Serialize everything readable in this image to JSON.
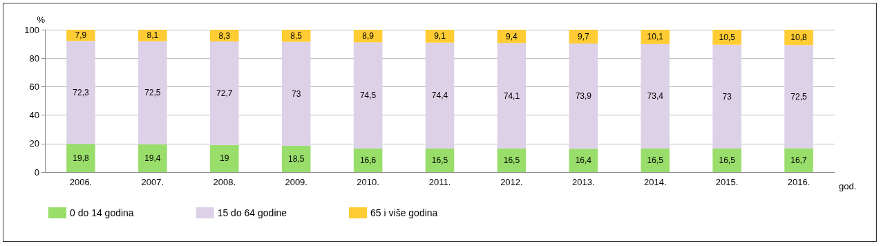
{
  "chart_data": {
    "type": "bar",
    "stacked": true,
    "ylabel": "%",
    "xlabel": "god.",
    "categories": [
      "2006.",
      "2007.",
      "2008.",
      "2009.",
      "2010.",
      "2011.",
      "2012.",
      "2013.",
      "2014.",
      "2015.",
      "2016."
    ],
    "series": [
      {
        "name": "0 do 14 godina",
        "color": "#99dd6a",
        "values": [
          19.8,
          19.4,
          19,
          18.5,
          16.6,
          16.5,
          16.5,
          16.4,
          16.5,
          16.5,
          16.7
        ],
        "value_labels": [
          "19,8",
          "19,4",
          "19",
          "18,5",
          "16,6",
          "16,5",
          "16,5",
          "16,4",
          "16,5",
          "16,5",
          "16,7"
        ]
      },
      {
        "name": "15 do 64 godine",
        "color": "#ddd1e8",
        "values": [
          72.3,
          72.5,
          72.7,
          73,
          74.5,
          74.4,
          74.1,
          73.9,
          73.4,
          73,
          72.5
        ],
        "value_labels": [
          "72,3",
          "72,5",
          "72,7",
          "73",
          "74,5",
          "74,4",
          "74,1",
          "73,9",
          "73,4",
          "73",
          "72,5"
        ]
      },
      {
        "name": "65 i više godina",
        "color": "#ffcc33",
        "values": [
          7.9,
          8.1,
          8.3,
          8.5,
          8.9,
          9.1,
          9.4,
          9.7,
          10.1,
          10.5,
          10.8
        ],
        "value_labels": [
          "7,9",
          "8,1",
          "8,3",
          "8,5",
          "8,9",
          "9,1",
          "9,4",
          "9,7",
          "10,1",
          "10,5",
          "10,8"
        ]
      }
    ],
    "ylim": [
      0,
      100
    ],
    "yticks": [
      0,
      20,
      40,
      60,
      80,
      100
    ],
    "grid": "y",
    "legend": "bottom left"
  }
}
